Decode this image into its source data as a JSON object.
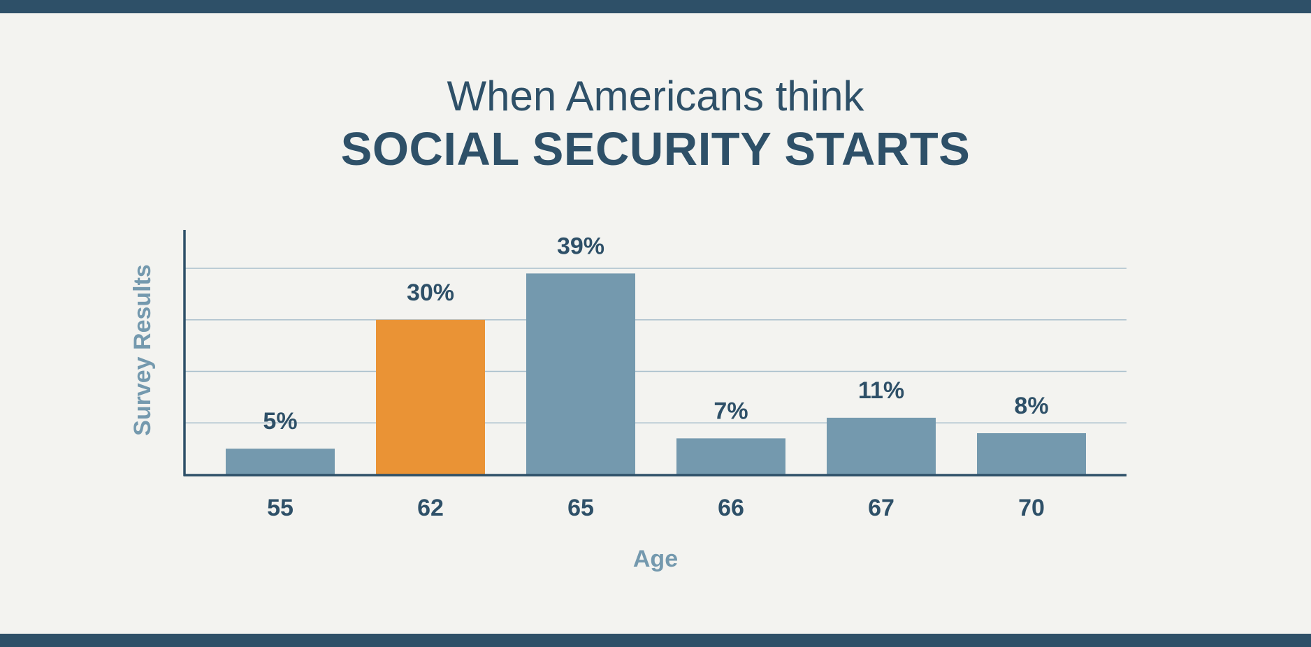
{
  "header": {
    "title_line1": "When Americans think",
    "title_line2": "SOCIAL SECURITY STARTS"
  },
  "colors": {
    "frame": "#2e5068",
    "background": "#f3f3f0",
    "bar_default": "#7499ae",
    "bar_highlight": "#ea9335",
    "text_dark": "#2e5068",
    "text_light": "#7499ae",
    "gridline": "#a9bfcc"
  },
  "chart_data": {
    "type": "bar",
    "categories": [
      "55",
      "62",
      "65",
      "66",
      "67",
      "70"
    ],
    "values": [
      5,
      30,
      39,
      7,
      11,
      8
    ],
    "data_labels": [
      "5%",
      "30%",
      "39%",
      "7%",
      "11%",
      "8%"
    ],
    "highlight_category": "62",
    "xlabel": "Age",
    "ylabel": "Survey Results",
    "ylim": [
      0,
      40
    ],
    "y_tick_labels_shown": false,
    "grid": true,
    "gridline_values": [
      10,
      20,
      30,
      40
    ]
  }
}
